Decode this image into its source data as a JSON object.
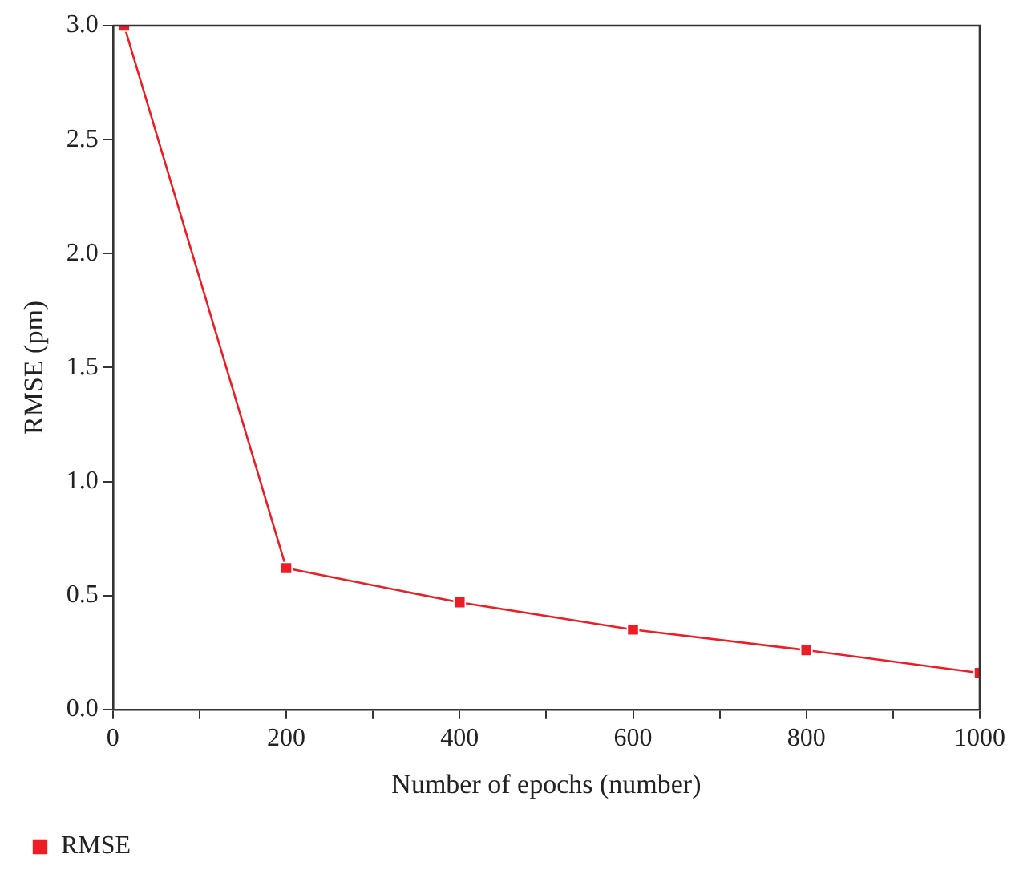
{
  "chart_data": {
    "type": "line",
    "xlabel": "Number of epochs (number)",
    "ylabel": "RMSE (pm)",
    "x": [
      13,
      200,
      400,
      600,
      800,
      1000
    ],
    "series": [
      {
        "name": "RMSE",
        "color": "#ee1c25",
        "values": [
          3.0,
          0.62,
          0.47,
          0.35,
          0.26,
          0.16
        ]
      }
    ],
    "xlim": [
      0,
      1000
    ],
    "ylim": [
      0,
      3.0
    ],
    "xticks": [
      0,
      {
        "value": 100,
        "label": null
      },
      200,
      {
        "value": 300,
        "label": null
      },
      400,
      {
        "value": 500,
        "label": null
      },
      600,
      {
        "value": 700,
        "label": null
      },
      800,
      {
        "value": 900,
        "label": null
      },
      1000
    ],
    "yticks": [
      {
        "value": 0,
        "label": "0.0"
      },
      {
        "value": 0.5,
        "label": "0.5"
      },
      {
        "value": 1,
        "label": "1.0"
      },
      {
        "value": 1.5,
        "label": "1.5"
      },
      {
        "value": 2,
        "label": "2.0"
      },
      {
        "value": 2.5,
        "label": "2.5"
      },
      {
        "value": 3,
        "label": "3.0"
      }
    ],
    "grid": false,
    "legend": "bottom left",
    "marker": "square",
    "line_style": "solid"
  }
}
